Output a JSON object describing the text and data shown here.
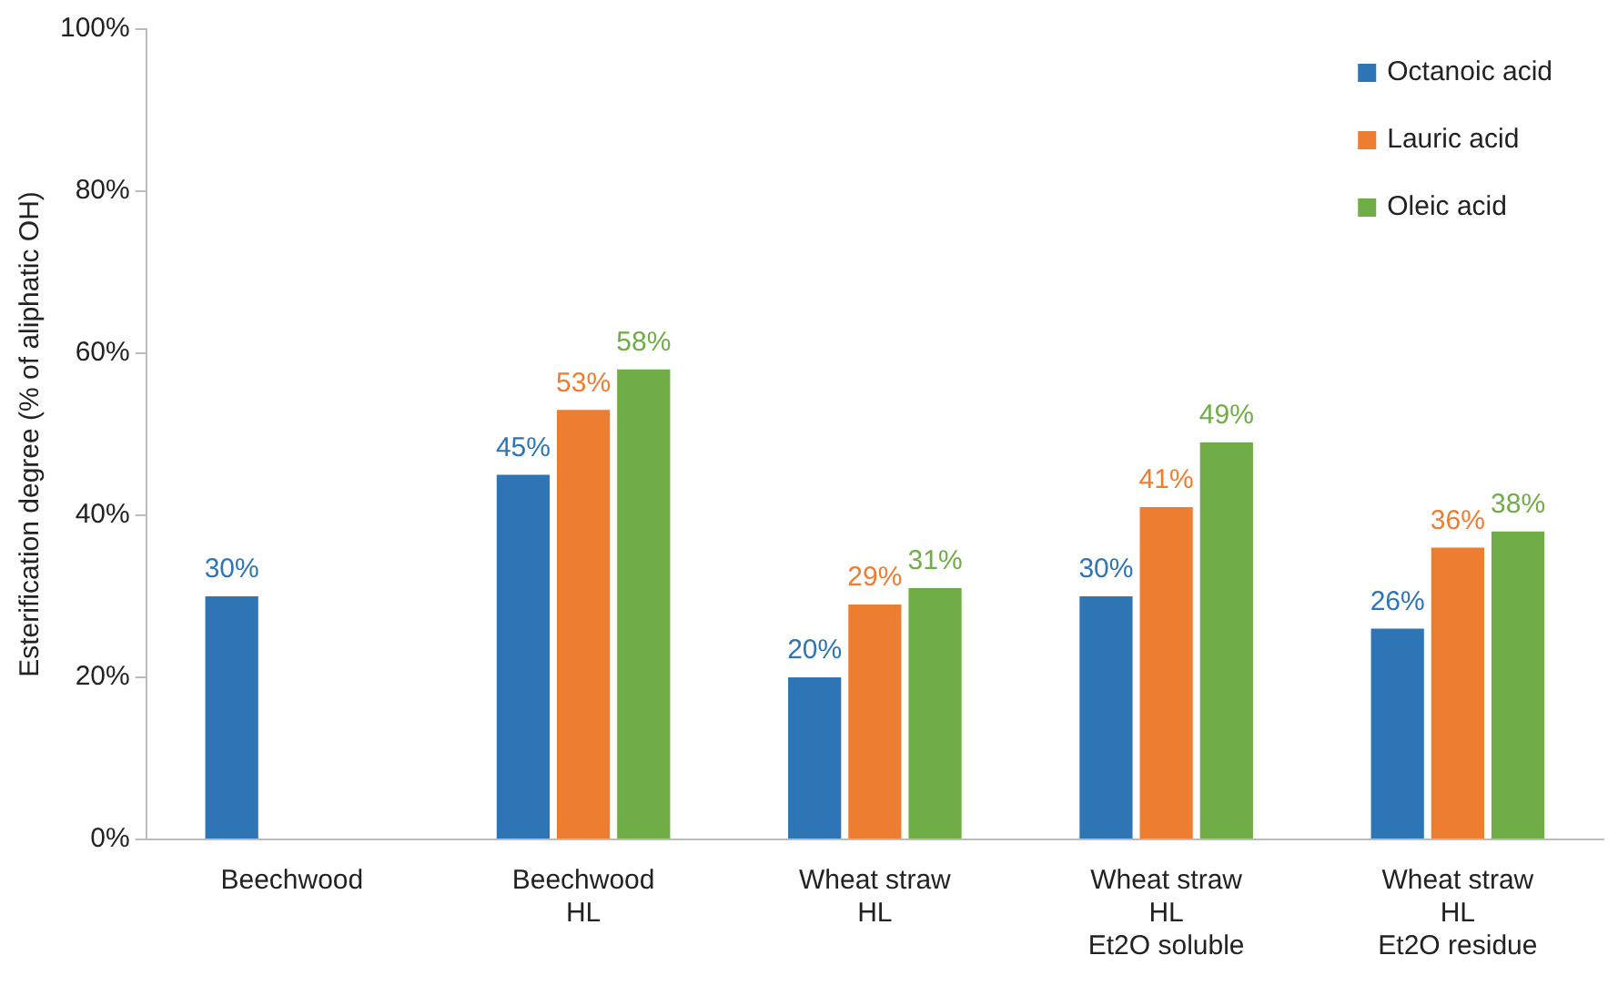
{
  "chart_data": {
    "type": "bar",
    "ylabel": "Esterification degree (% of aliphatic OH)",
    "categories": [
      "Beechwood",
      "Beechwood\nHL",
      "Wheat straw\nHL",
      "Wheat straw\nHL\nEt2O soluble",
      "Wheat straw\nHL\nEt2O residue"
    ],
    "series": [
      {
        "name": "Octanoic acid",
        "color": "#2e75b6",
        "values": [
          30,
          45,
          20,
          30,
          26
        ],
        "value_labels": [
          "30%",
          "45%",
          "20%",
          "30%",
          "26%"
        ]
      },
      {
        "name": "Lauric acid",
        "color": "#ed7d31",
        "values": [
          null,
          53,
          29,
          41,
          36
        ],
        "value_labels": [
          null,
          "53%",
          "29%",
          "41%",
          "36%"
        ]
      },
      {
        "name": "Oleic acid",
        "color": "#70ad47",
        "values": [
          null,
          58,
          31,
          49,
          38
        ],
        "value_labels": [
          null,
          "58%",
          "31%",
          "49%",
          "38%"
        ]
      }
    ],
    "ylim": [
      0,
      100
    ],
    "yticks": [
      {
        "value": 0,
        "label": "0%"
      },
      {
        "value": 20,
        "label": "20%"
      },
      {
        "value": 40,
        "label": "40%"
      },
      {
        "value": 60,
        "label": "60%"
      },
      {
        "value": 80,
        "label": "80%"
      },
      {
        "value": 100,
        "label": "100%"
      }
    ],
    "grid": false,
    "legend": "top right"
  }
}
